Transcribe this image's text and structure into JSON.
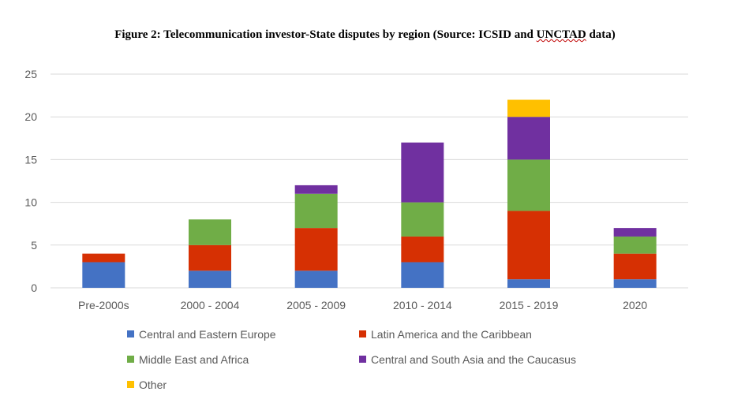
{
  "title_prefix": "Figure 2: Telecommunication investor-State disputes by region (Source: ICSID and ",
  "title_underlined": "UNCTAD",
  "title_suffix": " data)",
  "chart_data": {
    "type": "bar",
    "stacked": true,
    "categories": [
      "Pre-2000s",
      "2000 - 2004",
      "2005 - 2009",
      "2010 - 2014",
      "2015 - 2019",
      "2020"
    ],
    "series": [
      {
        "name": "Central and Eastern Europe",
        "color": "#4472c4",
        "values": [
          3,
          2,
          2,
          3,
          1,
          1
        ]
      },
      {
        "name": "Latin America and the Caribbean",
        "color": "#d63003",
        "values": [
          1,
          3,
          5,
          3,
          8,
          3
        ]
      },
      {
        "name": "Middle East and Africa",
        "color": "#70ad47",
        "values": [
          0,
          3,
          4,
          4,
          6,
          2
        ]
      },
      {
        "name": "Central and South Asia and the Caucasus",
        "color": "#7030a0",
        "values": [
          0,
          0,
          1,
          7,
          5,
          1
        ]
      },
      {
        "name": "Other",
        "color": "#ffc000",
        "values": [
          0,
          0,
          0,
          0,
          2,
          0
        ]
      }
    ],
    "yticks": [
      "0",
      "5",
      "10",
      "15",
      "20",
      "25"
    ],
    "ylim": [
      0,
      25
    ],
    "grid": true,
    "legend_position": "bottom"
  }
}
